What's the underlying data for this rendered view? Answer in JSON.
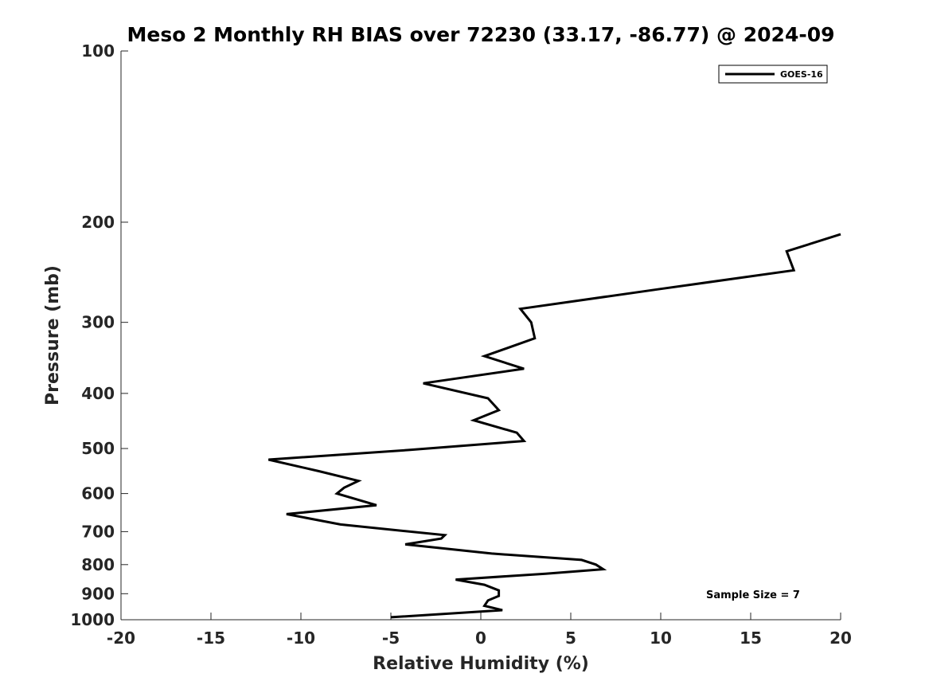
{
  "chart_data": {
    "type": "line",
    "title": "Meso 2 Monthly RH BIAS over 72230 (33.17, -86.77) @ 2024-09",
    "xlabel": "Relative Humidity (%)",
    "ylabel": "Pressure (mb)",
    "xlim": [
      -20,
      20
    ],
    "ylim": [
      1000,
      100
    ],
    "yscale": "log",
    "xticks": [
      -20,
      -15,
      -10,
      -5,
      0,
      5,
      10,
      15,
      20
    ],
    "xtick_labels": [
      "-20",
      "-15",
      "-10",
      "-5",
      "0",
      "5",
      "10",
      "15",
      "20"
    ],
    "yticks": [
      100,
      200,
      300,
      400,
      500,
      600,
      700,
      800,
      900,
      1000
    ],
    "ytick_labels": [
      "100",
      "200",
      "300",
      "400",
      "500",
      "600",
      "700",
      "800",
      "900",
      "1000"
    ],
    "grid": false,
    "legend": {
      "position": "top-right",
      "entries": [
        "GOES-16"
      ]
    },
    "annotation": "Sample Size = 7",
    "series": [
      {
        "name": "GOES-16",
        "color": "#000000",
        "points": [
          [
            20.0,
            210
          ],
          [
            17.0,
            225
          ],
          [
            17.4,
            243
          ],
          [
            10.0,
            262
          ],
          [
            2.2,
            284
          ],
          [
            2.8,
            300
          ],
          [
            3.0,
            320
          ],
          [
            0.2,
            344
          ],
          [
            2.4,
            362
          ],
          [
            -3.2,
            384
          ],
          [
            0.4,
            408
          ],
          [
            1.0,
            428
          ],
          [
            -0.4,
            446
          ],
          [
            2.0,
            469
          ],
          [
            2.4,
            485
          ],
          [
            -4.0,
            503
          ],
          [
            -11.8,
            523
          ],
          [
            -9.0,
            548
          ],
          [
            -6.8,
            570
          ],
          [
            -7.6,
            586
          ],
          [
            -8.0,
            600
          ],
          [
            -5.8,
            629
          ],
          [
            -10.8,
            652
          ],
          [
            -7.8,
            680
          ],
          [
            -2.0,
            710
          ],
          [
            -2.2,
            720
          ],
          [
            -4.2,
            737
          ],
          [
            0.6,
            765
          ],
          [
            5.6,
            785
          ],
          [
            6.4,
            800
          ],
          [
            6.8,
            815
          ],
          [
            3.6,
            830
          ],
          [
            -1.4,
            850
          ],
          [
            0.2,
            868
          ],
          [
            1.0,
            888
          ],
          [
            1.0,
            908
          ],
          [
            0.4,
            925
          ],
          [
            0.2,
            945
          ],
          [
            1.2,
            962
          ],
          [
            -5.0,
            990
          ]
        ]
      }
    ]
  }
}
